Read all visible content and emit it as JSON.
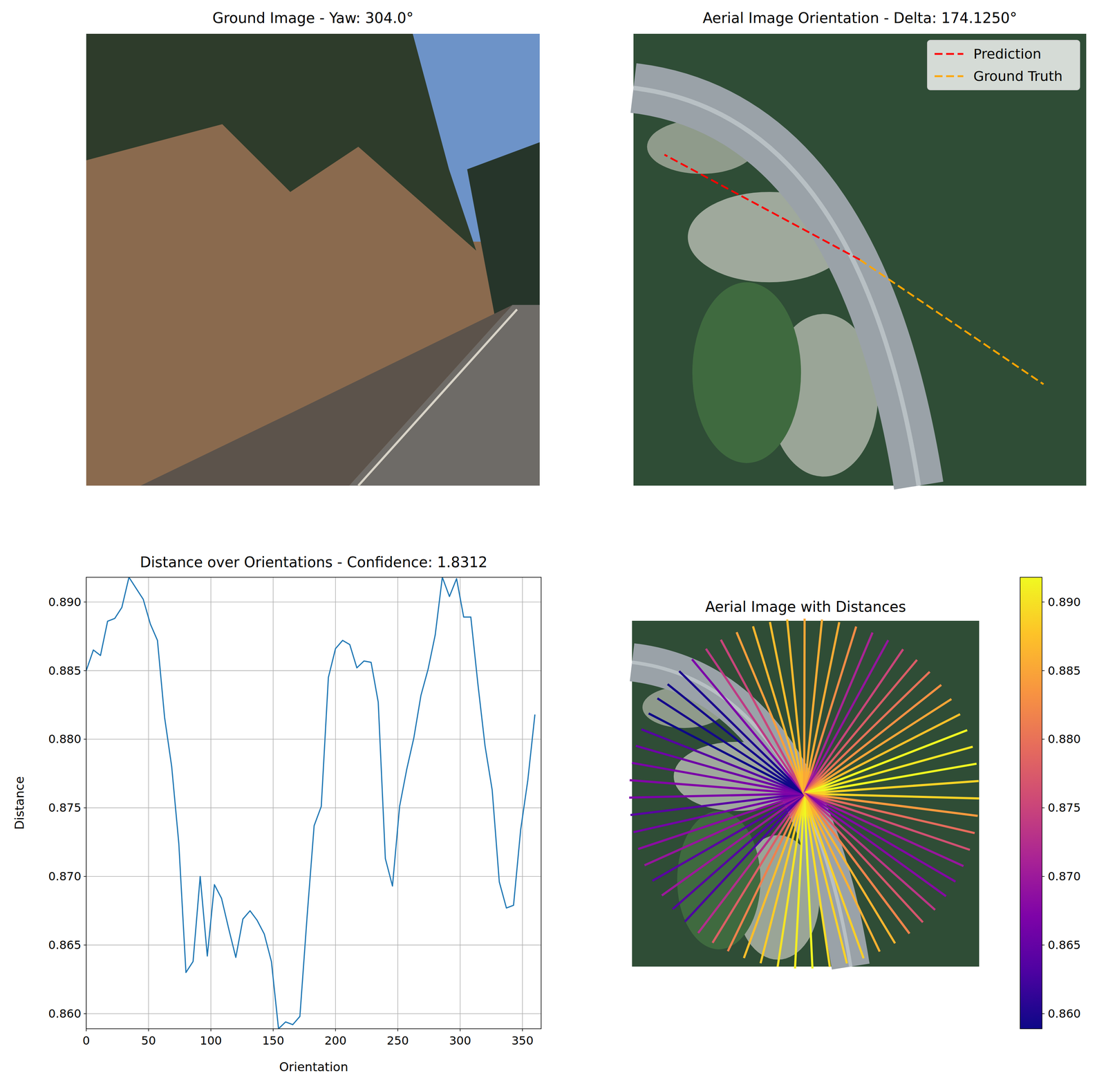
{
  "chart_data": [
    {
      "type": "image",
      "title": "Ground Image - Yaw: 304.0°"
    },
    {
      "type": "image",
      "title": "Aerial Image Orientation - Delta: 174.1250°",
      "legend": "upper right",
      "series": [
        {
          "name": "Prediction",
          "color": "#ff0000",
          "line_style": "dashed",
          "values": [
            298.25
          ]
        },
        {
          "name": "Ground Truth",
          "color": "#ffa500",
          "line_style": "dashed",
          "values": [
            124.125
          ]
        }
      ]
    },
    {
      "type": "line",
      "title": "Distance over Orientations - Confidence: 1.8312",
      "x_label": "Orientation",
      "y_label": "Distance",
      "color": "#1f77b4",
      "grid": true,
      "x": [
        0,
        5.714,
        11.429,
        17.143,
        22.857,
        28.571,
        34.286,
        40,
        45.714,
        51.429,
        57.143,
        62.857,
        68.571,
        74.286,
        80,
        85.714,
        91.429,
        97.143,
        102.857,
        108.571,
        114.286,
        120,
        125.714,
        131.429,
        137.143,
        142.857,
        148.571,
        154.286,
        160,
        165.714,
        171.429,
        177.143,
        182.857,
        188.571,
        194.286,
        200,
        205.714,
        211.429,
        217.143,
        222.857,
        228.571,
        234.286,
        240,
        245.714,
        251.429,
        257.143,
        262.857,
        268.571,
        274.286,
        280,
        285.714,
        291.429,
        297.143,
        302.857,
        308.571,
        314.286,
        320,
        325.714,
        331.429,
        337.143,
        342.857,
        348.571,
        354.286,
        360
      ],
      "values": [
        0.885,
        0.8865,
        0.8861,
        0.8886,
        0.8888,
        0.8896,
        0.8918,
        0.891,
        0.8902,
        0.8884,
        0.8872,
        0.8816,
        0.878,
        0.8724,
        0.863,
        0.8638,
        0.87,
        0.8642,
        0.8694,
        0.8684,
        0.8662,
        0.8641,
        0.8669,
        0.8675,
        0.8668,
        0.8658,
        0.8638,
        0.8589,
        0.8594,
        0.8592,
        0.8598,
        0.867,
        0.8737,
        0.8751,
        0.8845,
        0.8866,
        0.8872,
        0.8869,
        0.8852,
        0.8857,
        0.8856,
        0.8827,
        0.8713,
        0.8693,
        0.8751,
        0.8778,
        0.8801,
        0.8832,
        0.8851,
        0.8876,
        0.8918,
        0.8904,
        0.8917,
        0.8889,
        0.8889,
        0.884,
        0.8795,
        0.8763,
        0.8696,
        0.8677,
        0.8679,
        0.8734,
        0.877,
        0.8818
      ],
      "xlim": [
        0,
        365
      ],
      "ylim": [
        0.8589,
        0.8918
      ],
      "xticks": [
        0,
        50,
        100,
        150,
        200,
        250,
        300,
        350
      ],
      "yticks": [
        {
          "value": 0.86,
          "label": "0.860"
        },
        {
          "value": 0.865,
          "label": "0.865"
        },
        {
          "value": 0.87,
          "label": "0.870"
        },
        {
          "value": 0.875,
          "label": "0.875"
        },
        {
          "value": 0.88,
          "label": "0.880"
        },
        {
          "value": 0.885,
          "label": "0.885"
        },
        {
          "value": 0.89,
          "label": "0.890"
        }
      ]
    },
    {
      "type": "radial",
      "title": "Aerial Image with Distances",
      "colorbar_range": [
        0.8589,
        0.8918
      ],
      "colorbar_ticks": [
        {
          "value": 0.86,
          "label": "0.860"
        },
        {
          "value": 0.865,
          "label": "0.865"
        },
        {
          "value": 0.87,
          "label": "0.870"
        },
        {
          "value": 0.875,
          "label": "0.875"
        },
        {
          "value": 0.88,
          "label": "0.880"
        },
        {
          "value": 0.885,
          "label": "0.885"
        },
        {
          "value": 0.89,
          "label": "0.890"
        }
      ]
    }
  ]
}
